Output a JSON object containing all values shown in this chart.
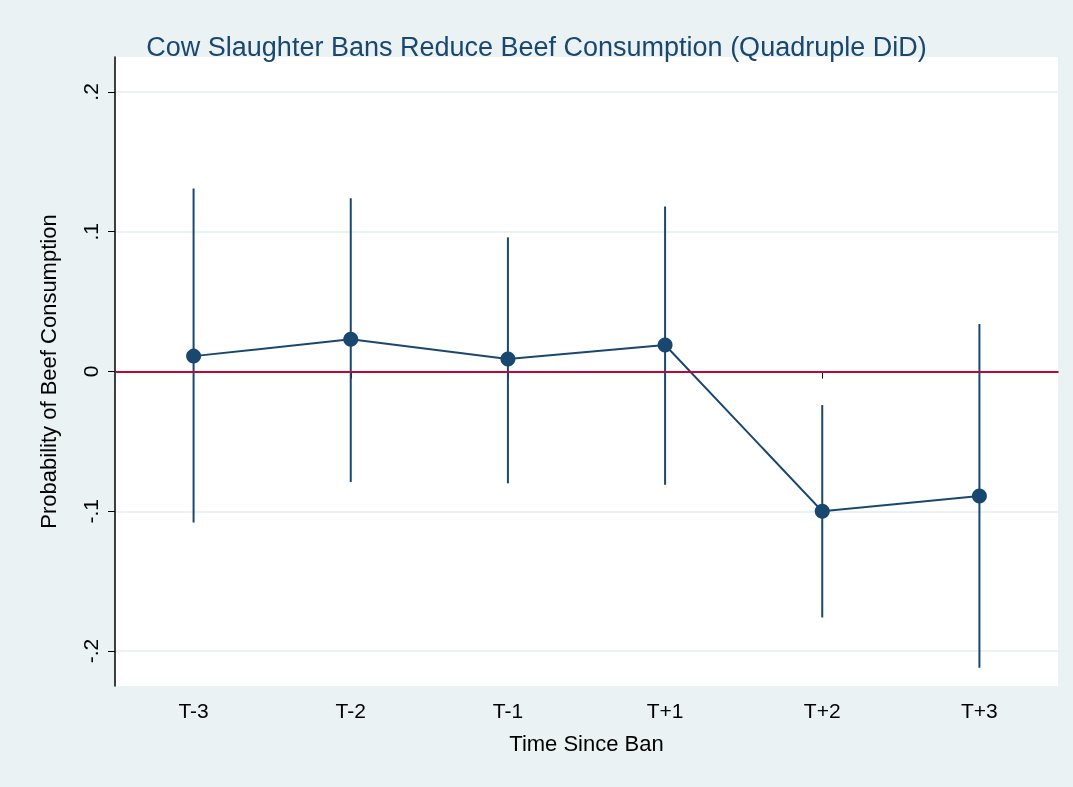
{
  "chart_data": {
    "type": "line",
    "title": "Cow Slaughter Bans Reduce Beef Consumption (Quadruple DiD)",
    "xlabel": "Time Since Ban",
    "ylabel": "Probability of Beef Consumption",
    "categories": [
      "T-3",
      "T-2",
      "T-1",
      "T+1",
      "T+2",
      "T+3"
    ],
    "series": [
      {
        "color": "#1a476f",
        "values": [
          0.011,
          0.023,
          0.009,
          0.019,
          -0.1,
          -0.089
        ],
        "errors": [
          [
            -0.108,
            0.131
          ],
          [
            -0.079,
            0.124
          ],
          [
            -0.08,
            0.096
          ],
          [
            -0.081,
            0.118
          ],
          [
            -0.176,
            -0.024
          ],
          [
            -0.212,
            0.034
          ]
        ]
      }
    ],
    "ylim": [
      -0.225,
      0.225
    ],
    "yticks": [
      {
        "value": -0.2,
        "label": "-.2"
      },
      {
        "value": -0.1,
        "label": "-.1"
      },
      0,
      {
        "value": 0.1,
        "label": ".1"
      },
      {
        "value": 0.2,
        "label": ".2"
      }
    ],
    "ref_lines": [
      {
        "axis": "y",
        "value": 0,
        "color": "#c10534"
      }
    ],
    "grid": "y",
    "marker": "circle",
    "line_style": "solid"
  }
}
